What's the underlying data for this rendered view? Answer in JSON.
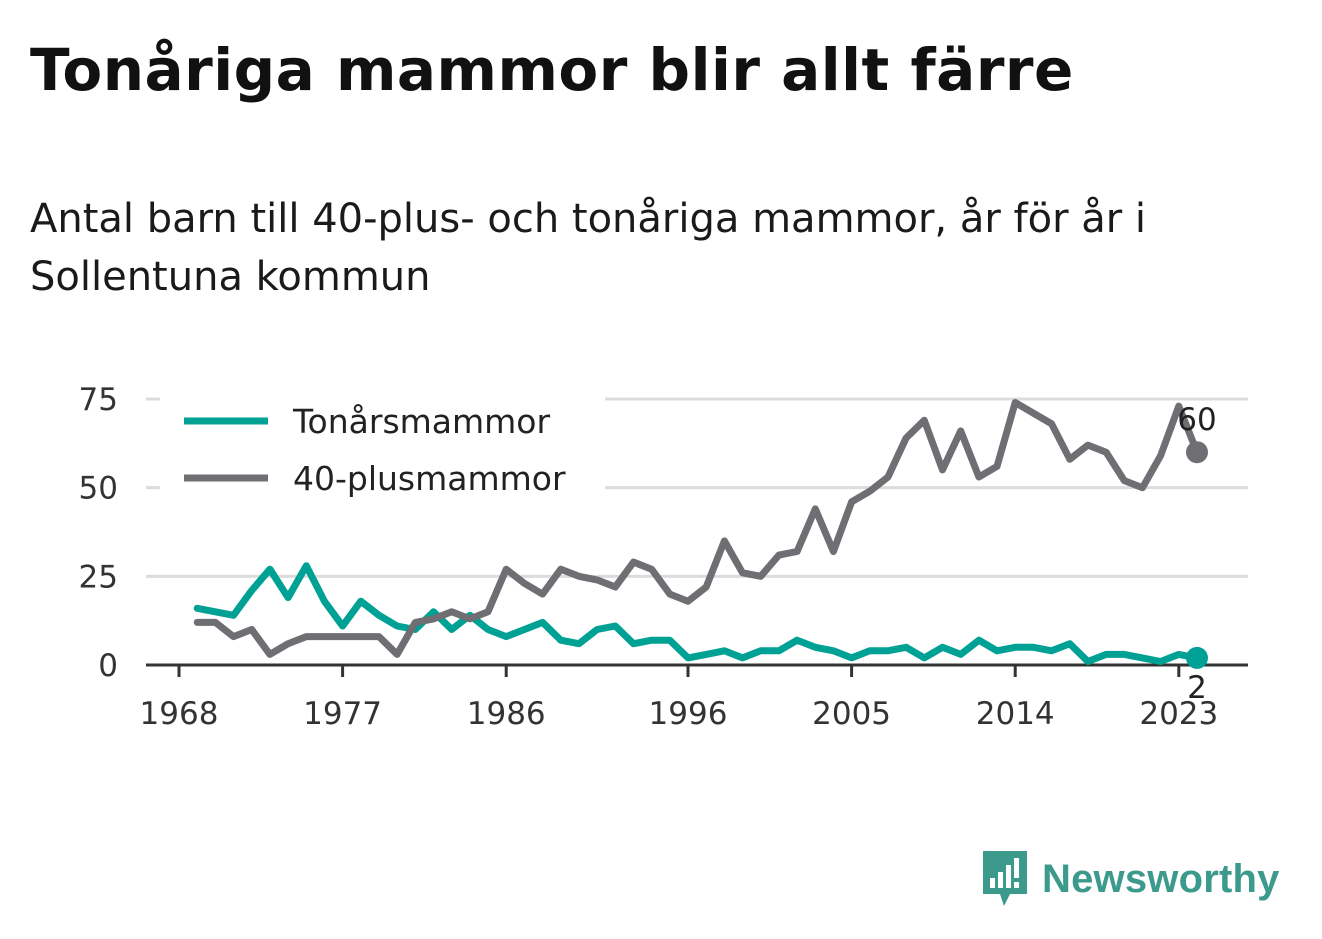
{
  "title": "Tonåriga mammor blir allt färre",
  "subtitle": "Antal barn till 40-plus- och tonåriga mammor, år för år i Sollentuna kommun",
  "brand": {
    "name": "Newsworthy",
    "color": "#3c9a8c",
    "icon": "newsworthy-logo-icon"
  },
  "chart_data": {
    "type": "line",
    "x": [
      1969,
      1970,
      1971,
      1972,
      1973,
      1974,
      1975,
      1976,
      1977,
      1978,
      1979,
      1980,
      1981,
      1982,
      1983,
      1984,
      1985,
      1986,
      1987,
      1988,
      1989,
      1990,
      1991,
      1992,
      1993,
      1994,
      1995,
      1996,
      1997,
      1998,
      1999,
      2000,
      2001,
      2002,
      2003,
      2004,
      2005,
      2006,
      2007,
      2008,
      2009,
      2010,
      2011,
      2012,
      2013,
      2014,
      2015,
      2016,
      2017,
      2018,
      2019,
      2020,
      2021,
      2022,
      2023,
      2024
    ],
    "series": [
      {
        "name": "Tonårsmammor",
        "color": "#00a195",
        "values": [
          16,
          15,
          14,
          21,
          27,
          19,
          28,
          18,
          11,
          18,
          14,
          11,
          10,
          15,
          10,
          14,
          10,
          8,
          10,
          12,
          7,
          6,
          10,
          11,
          6,
          7,
          7,
          2,
          3,
          4,
          2,
          4,
          4,
          7,
          5,
          4,
          2,
          4,
          4,
          5,
          2,
          5,
          3,
          7,
          4,
          5,
          5,
          4,
          6,
          1,
          3,
          3,
          2,
          1,
          3,
          2
        ]
      },
      {
        "name": "40-plusmammor",
        "color": "#6e6e73",
        "values": [
          12,
          12,
          8,
          10,
          3,
          6,
          8,
          8,
          8,
          8,
          8,
          3,
          12,
          13,
          15,
          13,
          15,
          27,
          23,
          20,
          27,
          25,
          24,
          22,
          29,
          27,
          20,
          18,
          22,
          35,
          26,
          25,
          31,
          32,
          44,
          32,
          46,
          49,
          53,
          64,
          69,
          55,
          66,
          53,
          56,
          74,
          71,
          68,
          58,
          62,
          60,
          52,
          50,
          59,
          73,
          60
        ]
      }
    ],
    "xticks": [
      "1968",
      "1977",
      "1986",
      "1996",
      "2005",
      "2014",
      "2023"
    ],
    "yticks": [
      "0",
      "25",
      "50",
      "75"
    ],
    "ylim": [
      0,
      75
    ],
    "xlim": [
      1968,
      2024
    ],
    "end_labels": [
      "2",
      "60"
    ],
    "grid": true,
    "legend_position": "top-left"
  }
}
